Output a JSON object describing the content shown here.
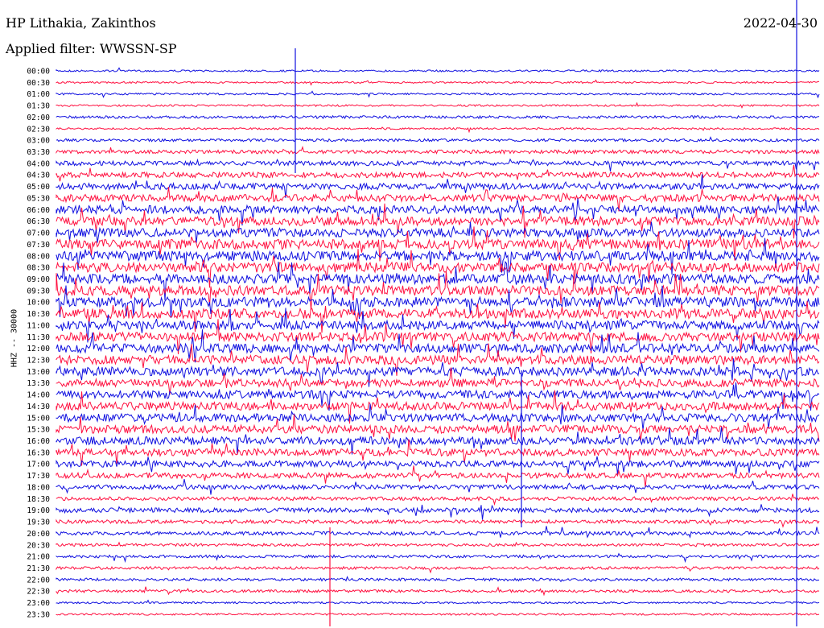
{
  "header": {
    "station": "HP Lithakia, Zakinthos",
    "filter": "Applied filter: WWSSN-SP",
    "date": "2022-04-30",
    "channel": "HHZ -- 30000"
  },
  "colors": {
    "blue": "#1010e0",
    "red": "#ff1040"
  },
  "chart_data": {
    "type": "line",
    "title": "HP Lithakia, Zakinthos",
    "subtitle": "Applied filter: WWSSN-SP",
    "ylabel": "HHZ -- 30000",
    "tick_labels": [
      "00:00",
      "00:30",
      "01:00",
      "01:30",
      "02:00",
      "02:30",
      "03:00",
      "03:30",
      "04:00",
      "04:30",
      "05:00",
      "05:30",
      "06:00",
      "06:30",
      "07:00",
      "07:30",
      "08:00",
      "08:30",
      "09:00",
      "09:30",
      "10:00",
      "10:30",
      "11:00",
      "11:30",
      "12:00",
      "12:30",
      "13:00",
      "13:30",
      "14:00",
      "14:30",
      "15:00",
      "15:30",
      "16:00",
      "16:30",
      "17:00",
      "17:30",
      "18:00",
      "18:30",
      "19:00",
      "19:30",
      "20:00",
      "20:30",
      "21:00",
      "21:30",
      "22:00",
      "22:30",
      "23:00",
      "23:30"
    ],
    "trace_colors": [
      "blue",
      "red"
    ],
    "trace_amplitude": [
      1,
      1,
      1,
      1,
      2,
      1,
      2,
      3,
      4,
      5,
      6,
      7,
      8,
      9,
      9,
      10,
      10,
      10,
      10,
      10,
      10,
      10,
      9,
      9,
      9,
      9,
      9,
      8,
      8,
      8,
      8,
      8,
      8,
      7,
      6,
      5,
      4,
      3,
      4,
      3,
      3,
      2,
      2,
      2,
      2,
      2,
      1,
      1
    ],
    "grid": false,
    "legend": "none"
  }
}
